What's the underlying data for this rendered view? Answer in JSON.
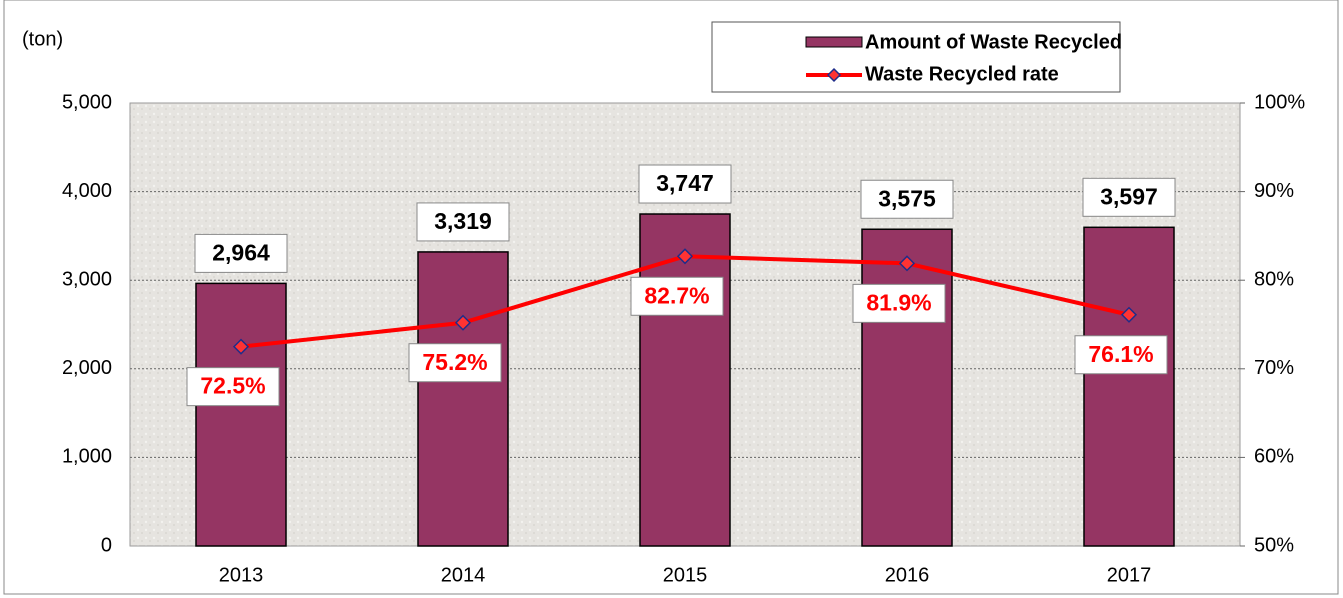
{
  "chart_data": {
    "type": "bar",
    "ylabel": "(ton)",
    "categories": [
      "2013",
      "2014",
      "2015",
      "2016",
      "2017"
    ],
    "series": [
      {
        "name": "Amount of Waste Recycled",
        "type": "bar",
        "color": "#953563",
        "values": [
          2964,
          3319,
          3747,
          3575,
          3597
        ],
        "value_labels": [
          "2,964",
          "3,319",
          "3,747",
          "3,575",
          "3,597"
        ]
      },
      {
        "name": "Waste Recycled rate",
        "type": "line",
        "axis": "y2",
        "color": "#ff0000",
        "marker_color": "#ff3333",
        "marker_edge": "#1f2d8a",
        "values": [
          72.5,
          75.2,
          82.7,
          81.9,
          76.1
        ],
        "value_labels": [
          "72.5%",
          "75.2%",
          "82.7%",
          "81.9%",
          "76.1%"
        ]
      }
    ],
    "ylim": [
      0,
      5000
    ],
    "yticks": [
      0,
      {
        "value": 1000,
        "label": "1,000"
      },
      {
        "value": 2000,
        "label": "2,000"
      },
      {
        "value": 3000,
        "label": "3,000"
      },
      {
        "value": 4000,
        "label": "4,000"
      },
      {
        "value": 5000,
        "label": "5,000"
      }
    ],
    "y2lim": [
      50,
      100
    ],
    "y2ticks": [
      {
        "value": 50,
        "label": "50%"
      },
      {
        "value": 60,
        "label": "60%"
      },
      {
        "value": 70,
        "label": "70%"
      },
      {
        "value": 80,
        "label": "80%"
      },
      {
        "value": 90,
        "label": "90%"
      },
      {
        "value": 100,
        "label": "100%"
      }
    ],
    "grid": true
  }
}
